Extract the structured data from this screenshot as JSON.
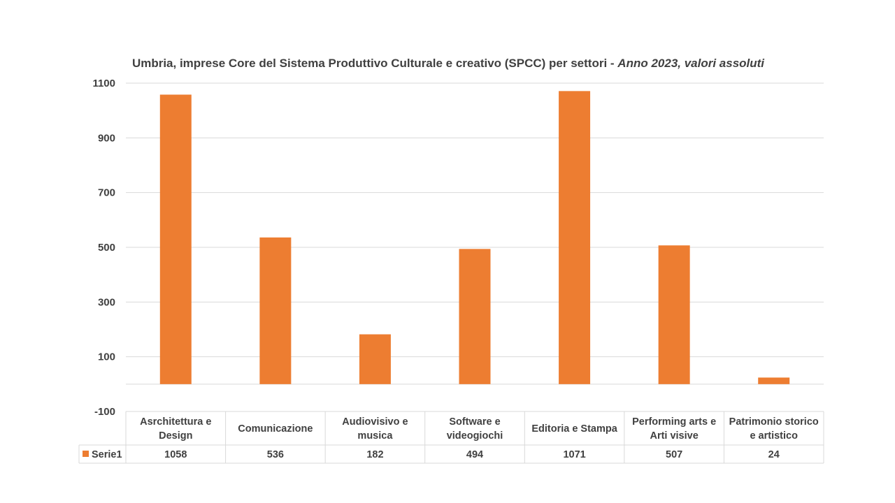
{
  "chart_data": {
    "type": "bar",
    "title": "Umbria, imprese Core del Sistema Produttivo Culturale e creativo (SPCC) per settori",
    "title_separator": " - ",
    "subtitle": "Anno 2023, valori assoluti",
    "categories": [
      [
        "Asrchitettura e",
        "Design"
      ],
      [
        "Comunicazione"
      ],
      [
        "Audiovisivo e",
        "musica"
      ],
      [
        "Software e",
        "videogiochi"
      ],
      [
        "Editoria e Stampa"
      ],
      [
        "Performing arts e",
        "Arti visive"
      ],
      [
        "Patrimonio storico",
        "e artistico"
      ]
    ],
    "series": [
      {
        "name": "Serie1",
        "values": [
          1058,
          536,
          182,
          494,
          1071,
          507,
          24
        ]
      }
    ],
    "value_labels": [
      "1058",
      "536",
      "182",
      "494",
      "1071",
      "507",
      "24"
    ],
    "yticks": [
      1100,
      900,
      700,
      500,
      300,
      100,
      -100
    ],
    "ytick_labels": [
      "1100",
      "900",
      "700",
      "500",
      "300",
      "100",
      "-100"
    ],
    "ylim": [
      -100,
      1100
    ],
    "grid": true,
    "data_table": true,
    "colors": {
      "bar": "#ED7D31",
      "grid": "#D9D9D9",
      "text": "#404040"
    }
  }
}
